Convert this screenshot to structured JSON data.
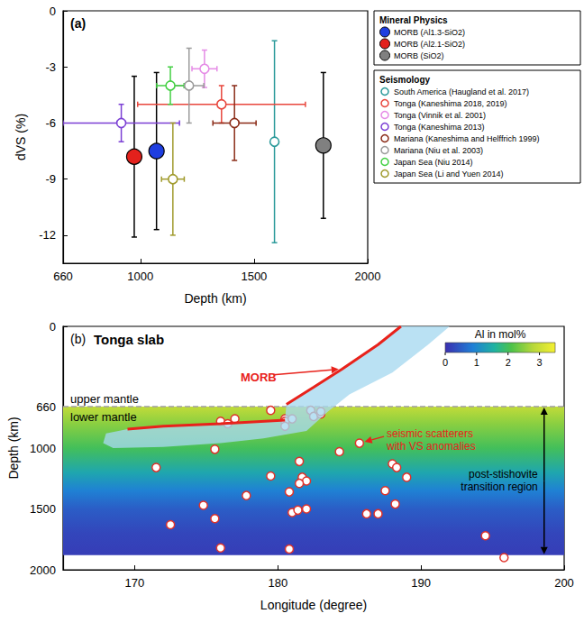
{
  "chart_data": [
    {
      "type": "scatter",
      "panel_label": "(a)",
      "xlabel": "Depth (km)",
      "ylabel": "dVS (%)",
      "xlim": [
        660,
        2000
      ],
      "xticks": [
        660,
        1000,
        1500,
        2000
      ],
      "ylim": [
        -13.5,
        0
      ],
      "yticks": [
        -12,
        -9,
        -6,
        -3,
        0
      ],
      "grid": false,
      "legend": "right",
      "series": [
        {
          "name": "MORB (Al1.3-SiO2)",
          "group": "Mineral Physics",
          "color": "#1e3ee0",
          "marker": "filled_circle",
          "x": [
            1071
          ],
          "values": [
            -7.5
          ],
          "yerr": [
            4.2
          ]
        },
        {
          "name": "MORB (Al2.1-SiO2)",
          "group": "Mineral Physics",
          "color": "#e3211c",
          "marker": "filled_circle",
          "x": [
            973
          ],
          "values": [
            -7.8
          ],
          "yerr": [
            4.3
          ]
        },
        {
          "name": "MORB (SiO2)",
          "group": "Mineral Physics",
          "color": "#808080",
          "marker": "filled_circle",
          "x": [
            1805
          ],
          "values": [
            -7.2
          ],
          "yerr": [
            3.9
          ]
        },
        {
          "name": "South America (Haugland et al. 2017)",
          "group": "Seismology",
          "color": "#2b9a9a",
          "marker": "open_circle",
          "x": [
            1590
          ],
          "values": [
            -7
          ],
          "yerr": [
            5.4
          ]
        },
        {
          "name": "Tonga (Kaneshima 2018, 2019)",
          "group": "Seismology",
          "color": "#e8463c",
          "marker": "open_circle",
          "x": [
            1357
          ],
          "values": [
            -5
          ],
          "xerr": [
            369
          ],
          "yerr": [
            1
          ]
        },
        {
          "name": "Tonga (Vinnik et al. 2001)",
          "group": "Seismology",
          "color": "#e58be6",
          "marker": "open_circle",
          "x": [
            1282
          ],
          "values": [
            -3.1
          ],
          "xerr": [
            55
          ],
          "yerr": [
            1
          ]
        },
        {
          "name": "Tonga (Kaneshima 2013)",
          "group": "Seismology",
          "color": "#7b3fd4",
          "marker": "open_circle",
          "x": [
            916
          ],
          "values": [
            -6
          ],
          "xerr": [
            256
          ],
          "yerr": [
            1
          ]
        },
        {
          "name": "Mariana (Kaneshima and Helffrich 1999)",
          "group": "Seismology",
          "color": "#8a2b17",
          "marker": "open_circle",
          "x": [
            1414
          ],
          "values": [
            -6
          ],
          "xerr": [
            95
          ],
          "yerr": [
            2
          ]
        },
        {
          "name": "Mariana (Niu et al. 2003)",
          "group": "Seismology",
          "color": "#9b9b9b",
          "marker": "open_circle",
          "x": [
            1214
          ],
          "values": [
            -4
          ],
          "xerr": [
            65
          ],
          "yerr": [
            2
          ]
        },
        {
          "name": "Japan Sea (Niu 2014)",
          "group": "Seismology",
          "color": "#44d044",
          "marker": "open_circle",
          "x": [
            1132
          ],
          "values": [
            -4
          ],
          "xerr": [
            60
          ],
          "yerr": [
            1
          ]
        },
        {
          "name": "Japan Sea (Li and Yuen 2014)",
          "group": "Seismology",
          "color": "#a09a2c",
          "marker": "open_circle",
          "x": [
            1143
          ],
          "values": [
            -9
          ],
          "xerr": [
            50
          ],
          "yerr": [
            3
          ]
        }
      ]
    },
    {
      "type": "scatter",
      "panel_label": "(b)",
      "title": "Tonga slab",
      "xlabel": "Longitude (degree)",
      "ylabel": "Depth (km)",
      "xlim": [
        165,
        200
      ],
      "xticks": [
        170,
        180,
        190,
        200
      ],
      "ylim": [
        2000,
        0
      ],
      "yticks": [
        0,
        660,
        1000,
        1500,
        2000
      ],
      "grid": false,
      "series": [
        {
          "type": "line",
          "line_style": "dashed",
          "color": "#a0a0a0",
          "x": [
            165,
            200
          ],
          "values": [
            660,
            660
          ]
        },
        {
          "type": "scatter",
          "marker": "open_circle",
          "color": "#e0322a",
          "x": [
            179.5,
            176,
            176.5,
            177,
            180.5,
            180.5,
            180.5,
            181,
            182.3,
            182.5,
            183,
            183,
            175.6,
            171.5,
            181.5,
            184.3,
            185.7,
            188,
            188.3,
            189,
            179.5,
            181.7,
            182,
            181.5,
            180.8,
            177.8,
            187.5,
            174.8,
            175.6,
            172.5,
            176,
            180.8,
            181,
            181.4,
            182,
            186.2,
            187,
            188.2,
            194.5,
            195.8
          ],
          "values": [
            690,
            780,
            800,
            760,
            760,
            780,
            820,
            760,
            690,
            740,
            720,
            700,
            1010,
            1160,
            1110,
            1030,
            960,
            1130,
            1160,
            1240,
            1230,
            1240,
            1270,
            1290,
            1360,
            1390,
            1350,
            1470,
            1580,
            1630,
            1820,
            1830,
            1530,
            1510,
            1500,
            1540,
            1540,
            1460,
            1720,
            1900
          ]
        },
        {
          "type": "polygon",
          "color": "#a6d8ef",
          "x": [
            188.6,
            187,
            184.5,
            182.5,
            180.6,
            180.5,
            176,
            172,
            169.5,
            168,
            167.8,
            168.5,
            172,
            176,
            179,
            182,
            183.5,
            185,
            188,
            190.5,
            192
          ],
          "values": [
            0,
            150,
            350,
            500,
            640,
            770,
            800,
            820,
            845,
            880,
            960,
            1000,
            990,
            960,
            920,
            860,
            700,
            560,
            380,
            150,
            0
          ]
        },
        {
          "type": "line",
          "color": "#e8221b",
          "x": [
            188.6,
            187,
            184.5,
            182.5,
            180.6
          ],
          "values": [
            0,
            150,
            350,
            500,
            640
          ]
        },
        {
          "type": "line",
          "color": "#e8221b",
          "x": [
            169.5,
            172,
            176,
            180.5
          ],
          "values": [
            845,
            820,
            800,
            770
          ]
        }
      ],
      "al_profile": {
        "depth": [
          660,
          800,
          1000,
          1200,
          1350,
          1500,
          1700,
          1880
        ],
        "al": [
          2.9,
          2.5,
          2.0,
          1.4,
          0.9,
          0.5,
          0.25,
          0.15
        ]
      },
      "colorbar": {
        "title": "Al in mol%",
        "range": [
          0,
          3.5
        ],
        "ticks": [
          0,
          1,
          2,
          3
        ]
      },
      "annotations": {
        "morb": "MORB",
        "upper_mantle": "upper mantle",
        "lower_mantle": "lower mantle",
        "scatterers": "seismic scatterers with VS anomalies",
        "transition": "post-stishovite transition region"
      }
    }
  ]
}
